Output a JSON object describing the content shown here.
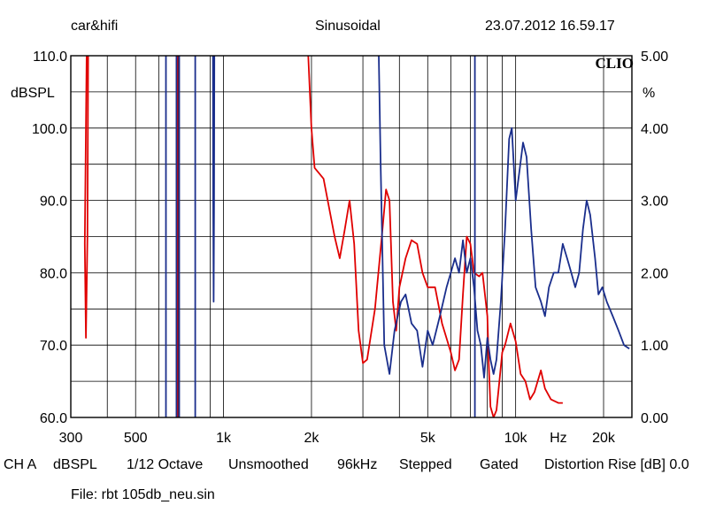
{
  "header": {
    "left": "car&hifi",
    "center": "Sinusoidal",
    "right": "23.07.2012 16.59.17"
  },
  "watermark": "CLIO",
  "footer": {
    "settings": [
      "CH A",
      "dBSPL",
      "1/12 Octave",
      "Unsmoothed",
      "96kHz",
      "Stepped",
      "Gated",
      "Distortion Rise [dB] 0.0"
    ],
    "file": "File: rbt 105db_neu.sin"
  },
  "colors": {
    "red_trace": "#e00000",
    "blue_trace": "#1a2e8c",
    "grid": "#000000"
  },
  "chart_data": {
    "type": "line",
    "xscale": "log",
    "xlim": [
      300,
      25000
    ],
    "x_ticks": [
      {
        "v": 300,
        "label": "300"
      },
      {
        "v": 500,
        "label": "500"
      },
      {
        "v": 1000,
        "label": "1k"
      },
      {
        "v": 2000,
        "label": "2k"
      },
      {
        "v": 5000,
        "label": "5k"
      },
      {
        "v": 10000,
        "label": "10k"
      },
      {
        "v": 14000,
        "label": "Hz"
      },
      {
        "v": 20000,
        "label": "20k"
      }
    ],
    "ylabel_left": "dBSPL",
    "ylim_left": [
      60,
      110
    ],
    "y_ticks_left": [
      "60.0",
      "70.0",
      "80.0",
      "90.0",
      "100.0",
      "110.0"
    ],
    "ylabel_right": "%",
    "ylim_right": [
      0,
      5
    ],
    "y_ticks_right": [
      "0.00",
      "1.00",
      "2.00",
      "3.00",
      "4.00",
      "5.00"
    ],
    "grid": true,
    "series": [
      {
        "color": "#e00000",
        "segments": [
          [
            [
              340,
              110
            ],
            [
              337,
              95
            ],
            [
              335,
              84
            ],
            [
              338,
              71
            ],
            [
              342,
              85
            ],
            [
              344,
              110
            ]
          ],
          [
            [
              695,
              60
            ],
            [
              695,
              110
            ]
          ],
          [
            [
              1950,
              110
            ],
            [
              2000,
              100
            ],
            [
              2050,
              94.5
            ],
            [
              2200,
              93
            ],
            [
              2400,
              85
            ],
            [
              2500,
              82
            ],
            [
              2600,
              86
            ],
            [
              2700,
              90
            ],
            [
              2800,
              84
            ],
            [
              2900,
              72
            ],
            [
              3000,
              67.5
            ],
            [
              3100,
              68
            ],
            [
              3300,
              75
            ],
            [
              3500,
              86
            ],
            [
              3600,
              91.5
            ],
            [
              3700,
              90
            ],
            [
              3800,
              76
            ],
            [
              3900,
              72
            ],
            [
              4000,
              78
            ],
            [
              4200,
              82
            ],
            [
              4400,
              84.5
            ],
            [
              4600,
              84
            ],
            [
              4800,
              80
            ],
            [
              5000,
              78
            ],
            [
              5300,
              78
            ],
            [
              5600,
              73
            ],
            [
              6000,
              69
            ],
            [
              6200,
              66.5
            ],
            [
              6400,
              68
            ],
            [
              6600,
              77
            ],
            [
              6800,
              85
            ],
            [
              7000,
              84
            ],
            [
              7200,
              80
            ],
            [
              7500,
              79.5
            ],
            [
              7700,
              80
            ],
            [
              8000,
              74
            ],
            [
              8100,
              67
            ],
            [
              8200,
              61.5
            ],
            [
              8400,
              60
            ],
            [
              8600,
              61
            ],
            [
              8800,
              65
            ],
            [
              9000,
              69
            ],
            [
              9200,
              70
            ],
            [
              9600,
              73
            ],
            [
              10000,
              70.5
            ],
            [
              10400,
              66
            ],
            [
              10800,
              65
            ],
            [
              11200,
              62.5
            ],
            [
              11600,
              63.5
            ],
            [
              12200,
              66.5
            ],
            [
              12600,
              64
            ],
            [
              13200,
              62.5
            ],
            [
              14000,
              62
            ],
            [
              14500,
              62
            ]
          ]
        ]
      },
      {
        "color": "#1a2e8c",
        "segments": [
          [
            [
              635,
              60
            ],
            [
              635,
              110
            ]
          ],
          [
            [
              690,
              60
            ],
            [
              690,
              110
            ]
          ],
          [
            [
              705,
              60
            ],
            [
              705,
              110
            ]
          ],
          [
            [
              800,
              60
            ],
            [
              800,
              110
            ]
          ],
          [
            [
              920,
              110
            ],
            [
              922,
              90
            ],
            [
              925,
              76
            ],
            [
              928,
              90
            ],
            [
              930,
              110
            ]
          ],
          [
            [
              3400,
              110
            ],
            [
              3450,
              95
            ],
            [
              3550,
              70
            ],
            [
              3700,
              66
            ],
            [
              3850,
              72
            ],
            [
              4050,
              76
            ],
            [
              4200,
              77
            ],
            [
              4400,
              73
            ],
            [
              4600,
              72
            ],
            [
              4800,
              67
            ],
            [
              5000,
              72
            ],
            [
              5200,
              70
            ],
            [
              5500,
              74
            ],
            [
              5800,
              78
            ],
            [
              6000,
              80
            ],
            [
              6200,
              82
            ],
            [
              6400,
              80
            ],
            [
              6600,
              84.5
            ],
            [
              6800,
              80
            ],
            [
              7000,
              82
            ],
            [
              7200,
              78
            ],
            [
              7400,
              72
            ],
            [
              7600,
              70
            ],
            [
              7800,
              65.5
            ],
            [
              8000,
              71
            ],
            [
              8200,
              68
            ],
            [
              8400,
              66
            ],
            [
              8600,
              68
            ],
            [
              8900,
              76
            ],
            [
              9200,
              86
            ],
            [
              9500,
              98.5
            ],
            [
              9700,
              100
            ],
            [
              10000,
              90
            ],
            [
              10300,
              94
            ],
            [
              10600,
              98
            ],
            [
              10900,
              96
            ],
            [
              11300,
              86
            ],
            [
              11700,
              78
            ],
            [
              12200,
              76
            ],
            [
              12600,
              74
            ],
            [
              13000,
              78
            ],
            [
              13500,
              80
            ],
            [
              14000,
              80
            ],
            [
              14500,
              84
            ],
            [
              15000,
              82
            ],
            [
              15500,
              80
            ],
            [
              16000,
              78
            ],
            [
              16500,
              80
            ],
            [
              17000,
              86
            ],
            [
              17500,
              90
            ],
            [
              18000,
              88
            ],
            [
              18700,
              82
            ],
            [
              19200,
              77
            ],
            [
              19800,
              78
            ],
            [
              20500,
              76
            ],
            [
              21500,
              74
            ],
            [
              22500,
              72
            ],
            [
              23500,
              70
            ],
            [
              24500,
              69.5
            ]
          ],
          [
            [
              7250,
              60
            ],
            [
              7250,
              110
            ]
          ]
        ]
      }
    ]
  }
}
